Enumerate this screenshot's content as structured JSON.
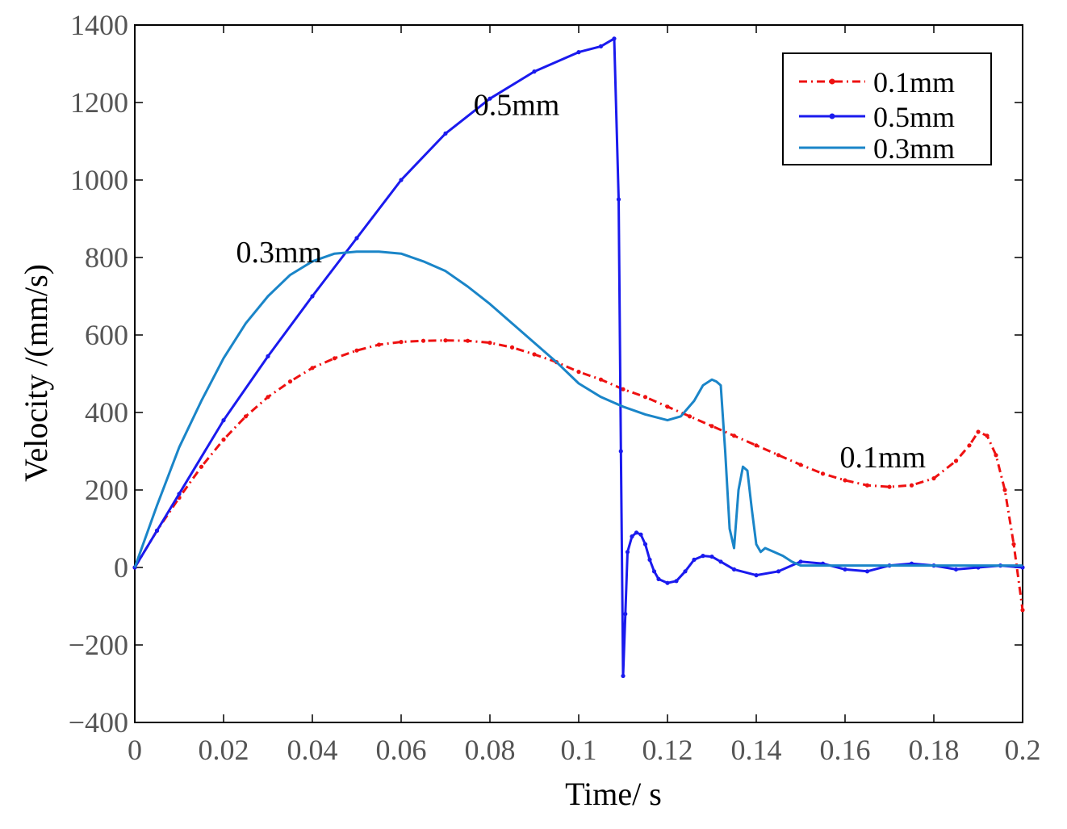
{
  "chart_data": {
    "type": "line",
    "title": "",
    "xlabel": "Time/ s",
    "ylabel": "Velocity /(mm/s)",
    "xlim": [
      0,
      0.2
    ],
    "ylim": [
      -400,
      1400
    ],
    "xticks": [
      0,
      0.02,
      0.04,
      0.06,
      0.08,
      0.1,
      0.12,
      0.14,
      0.16,
      0.18,
      0.2
    ],
    "xtick_labels": [
      "0",
      "0.02",
      "0.04",
      "0.06",
      "0.08",
      "0.1",
      "0.12",
      "0.14",
      "0.16",
      "0.18",
      "0.2"
    ],
    "yticks": [
      -400,
      -200,
      0,
      200,
      400,
      600,
      800,
      1000,
      1200,
      1400
    ],
    "ytick_labels": [
      "−400",
      "−200",
      "0",
      "200",
      "400",
      "600",
      "800",
      "1000",
      "1200",
      "1400"
    ],
    "grid": false,
    "legend_position": "top-right",
    "series": [
      {
        "name": "0.1mm",
        "color": "#ee1111",
        "style": "dash-dot",
        "marker": "dot",
        "x": [
          0,
          0.005,
          0.01,
          0.015,
          0.02,
          0.025,
          0.03,
          0.035,
          0.04,
          0.045,
          0.05,
          0.055,
          0.06,
          0.065,
          0.07,
          0.075,
          0.08,
          0.085,
          0.09,
          0.095,
          0.1,
          0.105,
          0.11,
          0.115,
          0.12,
          0.125,
          0.13,
          0.135,
          0.14,
          0.145,
          0.15,
          0.155,
          0.16,
          0.165,
          0.17,
          0.175,
          0.18,
          0.185,
          0.188,
          0.19,
          0.192,
          0.194,
          0.196,
          0.198,
          0.2
        ],
        "y": [
          0,
          95,
          180,
          260,
          330,
          390,
          440,
          480,
          515,
          540,
          560,
          575,
          582,
          585,
          586,
          585,
          580,
          568,
          550,
          530,
          505,
          485,
          460,
          440,
          415,
          390,
          365,
          340,
          315,
          290,
          265,
          242,
          225,
          212,
          208,
          212,
          230,
          275,
          315,
          350,
          340,
          290,
          200,
          60,
          -110
        ]
      },
      {
        "name": "0.5mm",
        "color": "#1a1aee",
        "style": "solid",
        "marker": "dot",
        "x": [
          0,
          0.005,
          0.01,
          0.02,
          0.03,
          0.04,
          0.05,
          0.06,
          0.07,
          0.08,
          0.09,
          0.1,
          0.105,
          0.108,
          0.109,
          0.1095,
          0.11,
          0.1105,
          0.111,
          0.112,
          0.113,
          0.114,
          0.115,
          0.116,
          0.117,
          0.118,
          0.12,
          0.122,
          0.124,
          0.126,
          0.128,
          0.13,
          0.132,
          0.135,
          0.14,
          0.145,
          0.15,
          0.155,
          0.16,
          0.165,
          0.17,
          0.175,
          0.18,
          0.185,
          0.19,
          0.195,
          0.2
        ],
        "y": [
          0,
          95,
          190,
          380,
          545,
          700,
          850,
          1000,
          1120,
          1210,
          1280,
          1330,
          1345,
          1365,
          950,
          300,
          -280,
          -120,
          40,
          80,
          90,
          85,
          60,
          20,
          -10,
          -30,
          -40,
          -35,
          -10,
          20,
          30,
          28,
          15,
          -5,
          -20,
          -10,
          15,
          10,
          -5,
          -10,
          5,
          10,
          5,
          -5,
          0,
          5,
          0
        ]
      },
      {
        "name": "0.3mm",
        "color": "#1a85c8",
        "style": "solid",
        "marker": "none",
        "x": [
          0,
          0.005,
          0.01,
          0.015,
          0.02,
          0.025,
          0.03,
          0.035,
          0.04,
          0.045,
          0.05,
          0.055,
          0.06,
          0.065,
          0.07,
          0.075,
          0.08,
          0.085,
          0.09,
          0.095,
          0.1,
          0.105,
          0.11,
          0.115,
          0.12,
          0.123,
          0.126,
          0.128,
          0.13,
          0.131,
          0.132,
          0.133,
          0.134,
          0.135,
          0.136,
          0.137,
          0.138,
          0.139,
          0.14,
          0.141,
          0.142,
          0.144,
          0.146,
          0.148,
          0.15,
          0.16,
          0.17,
          0.18,
          0.19,
          0.2
        ],
        "y": [
          0,
          160,
          310,
          430,
          540,
          630,
          700,
          755,
          790,
          810,
          815,
          815,
          810,
          790,
          765,
          725,
          680,
          630,
          580,
          530,
          475,
          440,
          415,
          395,
          380,
          390,
          430,
          470,
          485,
          480,
          470,
          300,
          100,
          50,
          200,
          260,
          250,
          150,
          60,
          40,
          50,
          40,
          30,
          15,
          5,
          5,
          5,
          5,
          5,
          5
        ]
      }
    ],
    "annotations": [
      {
        "text": "0.5mm",
        "x": 0.086,
        "y": 1195
      },
      {
        "text": "0.3mm",
        "x": 0.0325,
        "y": 815
      },
      {
        "text": "0.1mm",
        "x": 0.1685,
        "y": 285
      }
    ]
  }
}
